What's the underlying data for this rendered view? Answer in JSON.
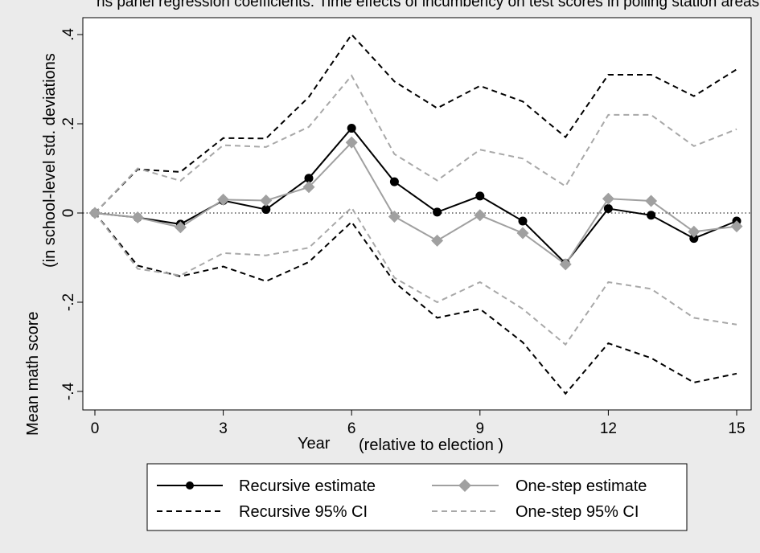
{
  "chart_data": {
    "type": "line",
    "title": "",
    "top_text": "ns panel regression coefficients: Time effects of incumbency on test scores in polling station areas",
    "xlabel": "Year",
    "xlabel_suffix": "(relative to election )",
    "ylabel_main": "Mean math score",
    "ylabel_sub": "(in school-level std. deviations",
    "xlim": [
      0,
      15
    ],
    "ylim": [
      -0.4,
      0.4
    ],
    "x_ticks": [
      0,
      3,
      6,
      9,
      12,
      15
    ],
    "x_tick_labels": [
      "0",
      "3",
      "6",
      "9",
      "12",
      "15"
    ],
    "y_ticks": [
      -0.4,
      -0.2,
      0,
      0.2,
      0.4
    ],
    "y_tick_labels": [
      "-.4",
      "-.2",
      "0",
      ".2",
      ".4"
    ],
    "reference_line_y": 0,
    "x": [
      0,
      1,
      2,
      3,
      4,
      5,
      6,
      7,
      8,
      9,
      10,
      11,
      12,
      13,
      14,
      15
    ],
    "series": [
      {
        "name": "Recursive estimate",
        "color": "#000000",
        "style": "solid",
        "marker": "circle",
        "values": [
          0,
          -0.01,
          -0.025,
          0.028,
          0.008,
          0.078,
          0.19,
          0.07,
          0.002,
          0.038,
          -0.018,
          -0.113,
          0.01,
          -0.005,
          -0.057,
          -0.018
        ]
      },
      {
        "name": "One-step estimate",
        "color": "#a0a0a0",
        "style": "solid",
        "marker": "diamond",
        "values": [
          0,
          -0.01,
          -0.032,
          0.03,
          0.028,
          0.058,
          0.158,
          -0.008,
          -0.062,
          -0.005,
          -0.045,
          -0.115,
          0.032,
          0.027,
          -0.042,
          -0.03
        ]
      },
      {
        "name": "Recursive 95% CI",
        "color": "#000000",
        "style": "dashed",
        "marker": "none",
        "values": [
          0,
          0.098,
          0.092,
          0.168,
          0.167,
          0.26,
          0.4,
          0.295,
          0.235,
          0.285,
          0.25,
          0.17,
          0.31,
          0.31,
          0.262,
          0.322
        ]
      },
      {
        "name": "Recursive 95% CI lower",
        "color": "#000000",
        "style": "dashed",
        "marker": "none",
        "legend": false,
        "values": [
          0,
          -0.118,
          -0.142,
          -0.12,
          -0.153,
          -0.11,
          -0.02,
          -0.155,
          -0.235,
          -0.215,
          -0.29,
          -0.405,
          -0.292,
          -0.325,
          -0.38,
          -0.36
        ]
      },
      {
        "name": "One-step 95% CI",
        "color": "#a8a8a8",
        "style": "dashed",
        "marker": "none",
        "values": [
          0,
          0.1,
          0.072,
          0.152,
          0.148,
          0.193,
          0.308,
          0.132,
          0.073,
          0.142,
          0.122,
          0.06,
          0.22,
          0.22,
          0.15,
          0.188
        ]
      },
      {
        "name": "One-step 95% CI lower",
        "color": "#a8a8a8",
        "style": "dashed",
        "marker": "none",
        "legend": false,
        "values": [
          0,
          -0.125,
          -0.14,
          -0.09,
          -0.095,
          -0.078,
          0.012,
          -0.145,
          -0.2,
          -0.155,
          -0.215,
          -0.295,
          -0.155,
          -0.17,
          -0.235,
          -0.25
        ]
      }
    ],
    "legend": {
      "placement": "bottom",
      "entries": [
        "Recursive estimate",
        "One-step estimate",
        "Recursive 95% CI",
        "One-step 95% CI"
      ]
    },
    "grid": false
  }
}
